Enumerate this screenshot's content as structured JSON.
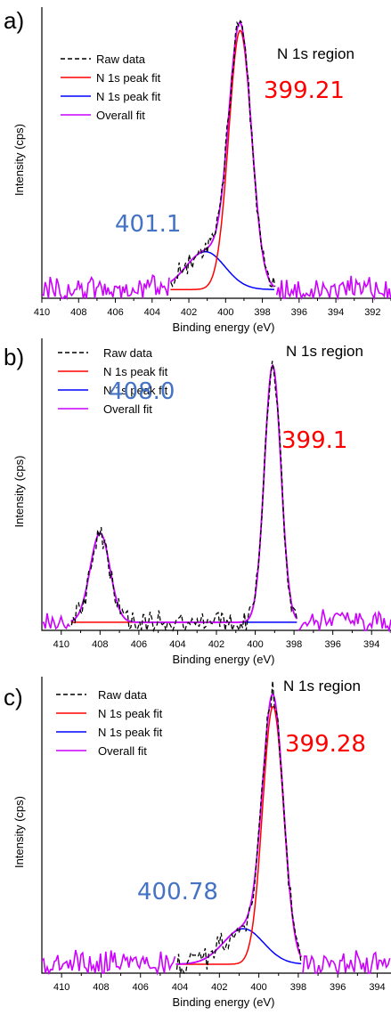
{
  "colors": {
    "raw": "#000000",
    "fit_red": "#ff0000",
    "fit_blue": "#0000ff",
    "overall": "#cc00ff",
    "peak_label_red": "#ff0000",
    "peak_label_blue": "#4472c4"
  },
  "chart_data": [
    {
      "type": "line",
      "panel_label": "a)",
      "region_label": "N 1s region",
      "xlabel": "Binding energy (eV)",
      "ylabel": "Intensity (cps)",
      "xlim": [
        410,
        391
      ],
      "x_reversed": true,
      "x_ticks": [
        "410",
        "408",
        "406",
        "404",
        "402",
        "400",
        "398",
        "396",
        "394",
        "392"
      ],
      "legend": [
        "Raw data",
        "N 1s peak fit",
        "N 1s peak fit",
        "Overall fit"
      ],
      "legend_position": "top-left",
      "baseline": 0.03,
      "fit_range": [
        403,
        397.3
      ],
      "series": [
        {
          "name": "N 1s peak fit",
          "color": "red",
          "center": 399.21,
          "height": 0.89,
          "fwhm": 1.45
        },
        {
          "name": "N 1s peak fit",
          "color": "blue",
          "center": 401.1,
          "height": 0.13,
          "fwhm": 2.5
        }
      ],
      "peak_labels": [
        {
          "text": "399.21",
          "color": "red"
        },
        {
          "text": "401.1",
          "color": "blue"
        }
      ]
    },
    {
      "type": "line",
      "panel_label": "b)",
      "region_label": "N 1s region",
      "xlabel": "Binding energy (eV)",
      "ylabel": "Intensity (cps)",
      "xlim": [
        411,
        393
      ],
      "x_reversed": true,
      "x_ticks": [
        "410",
        "408",
        "406",
        "404",
        "402",
        "400",
        "398",
        "396",
        "394"
      ],
      "legend": [
        "Raw data",
        "N 1s peak fit",
        "N 1s peak fit",
        "Overall fit"
      ],
      "legend_position": "top-left",
      "baseline": 0.03,
      "fit_range": [
        409.5,
        397.8
      ],
      "series": [
        {
          "name": "N 1s peak fit",
          "color": "red",
          "center": 399.1,
          "height": 0.95,
          "fwhm": 1.0
        },
        {
          "name": "N 1s peak fit",
          "color": "blue",
          "center": 408.0,
          "height": 0.33,
          "fwhm": 1.2
        }
      ],
      "peak_labels": [
        {
          "text": "399.1",
          "color": "red"
        },
        {
          "text": "408.0",
          "color": "blue"
        }
      ]
    },
    {
      "type": "line",
      "panel_label": "c)",
      "region_label": "N 1s region",
      "xlabel": "Binding energy (eV)",
      "ylabel": "Intensity (cps)",
      "xlim": [
        411,
        393.3
      ],
      "x_reversed": true,
      "x_ticks": [
        "410",
        "408",
        "406",
        "404",
        "402",
        "400",
        "398",
        "396",
        "394"
      ],
      "legend": [
        "Raw data",
        "N 1s peak fit",
        "N 1s peak fit",
        "Overall fit"
      ],
      "legend_position": "top-left",
      "baseline": 0.03,
      "fit_range": [
        404.2,
        397.8
      ],
      "series": [
        {
          "name": "N 1s peak fit",
          "color": "red",
          "center": 399.28,
          "height": 0.87,
          "fwhm": 1.25
        },
        {
          "name": "N 1s peak fit",
          "color": "blue",
          "center": 400.78,
          "height": 0.12,
          "fwhm": 2.4
        }
      ],
      "peak_labels": [
        {
          "text": "399.28",
          "color": "red"
        },
        {
          "text": "400.78",
          "color": "blue"
        }
      ]
    }
  ]
}
